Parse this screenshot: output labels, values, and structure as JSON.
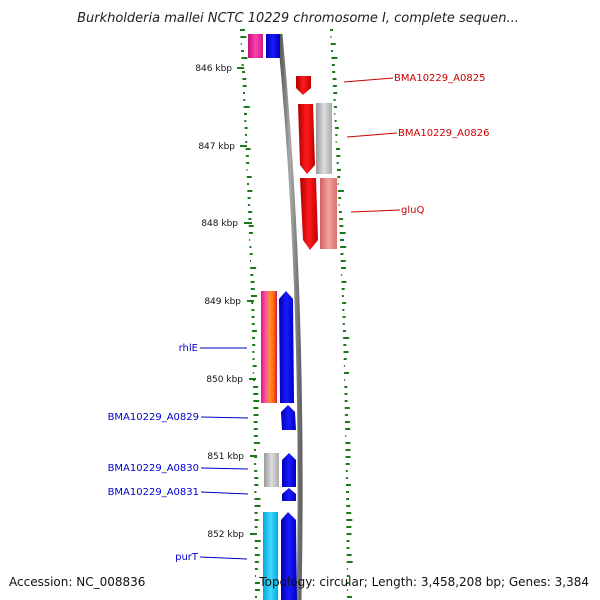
{
  "title": "Burkholderia mallei NCTC 10229 chromosome I, complete sequen...",
  "scale_labels": [
    "846 kbp",
    "847 kbp",
    "848 kbp",
    "849 kbp",
    "850 kbp",
    "851 kbp",
    "852 kbp"
  ],
  "genes_forward": [
    {
      "name": "BMA10229_A0825"
    },
    {
      "name": "BMA10229_A0826"
    },
    {
      "name": "gluQ"
    }
  ],
  "genes_reverse": [
    {
      "name": "rhlE"
    },
    {
      "name": "BMA10229_A0829"
    },
    {
      "name": "BMA10229_A0830"
    },
    {
      "name": "BMA10229_A0831"
    },
    {
      "name": "purT"
    }
  ],
  "footer": {
    "accession": "Accession: NC_008836",
    "summary": "Topology: circular; Length: 3,458,208 bp; Genes: 3,384"
  },
  "colors": {
    "forward_label": "#cc0000",
    "reverse_label": "#0000cc",
    "forward_cds": "#ee0000",
    "reverse_cds": "#0000ee",
    "gc_ticks": "#1a7a1a",
    "backbone": "#888888"
  }
}
